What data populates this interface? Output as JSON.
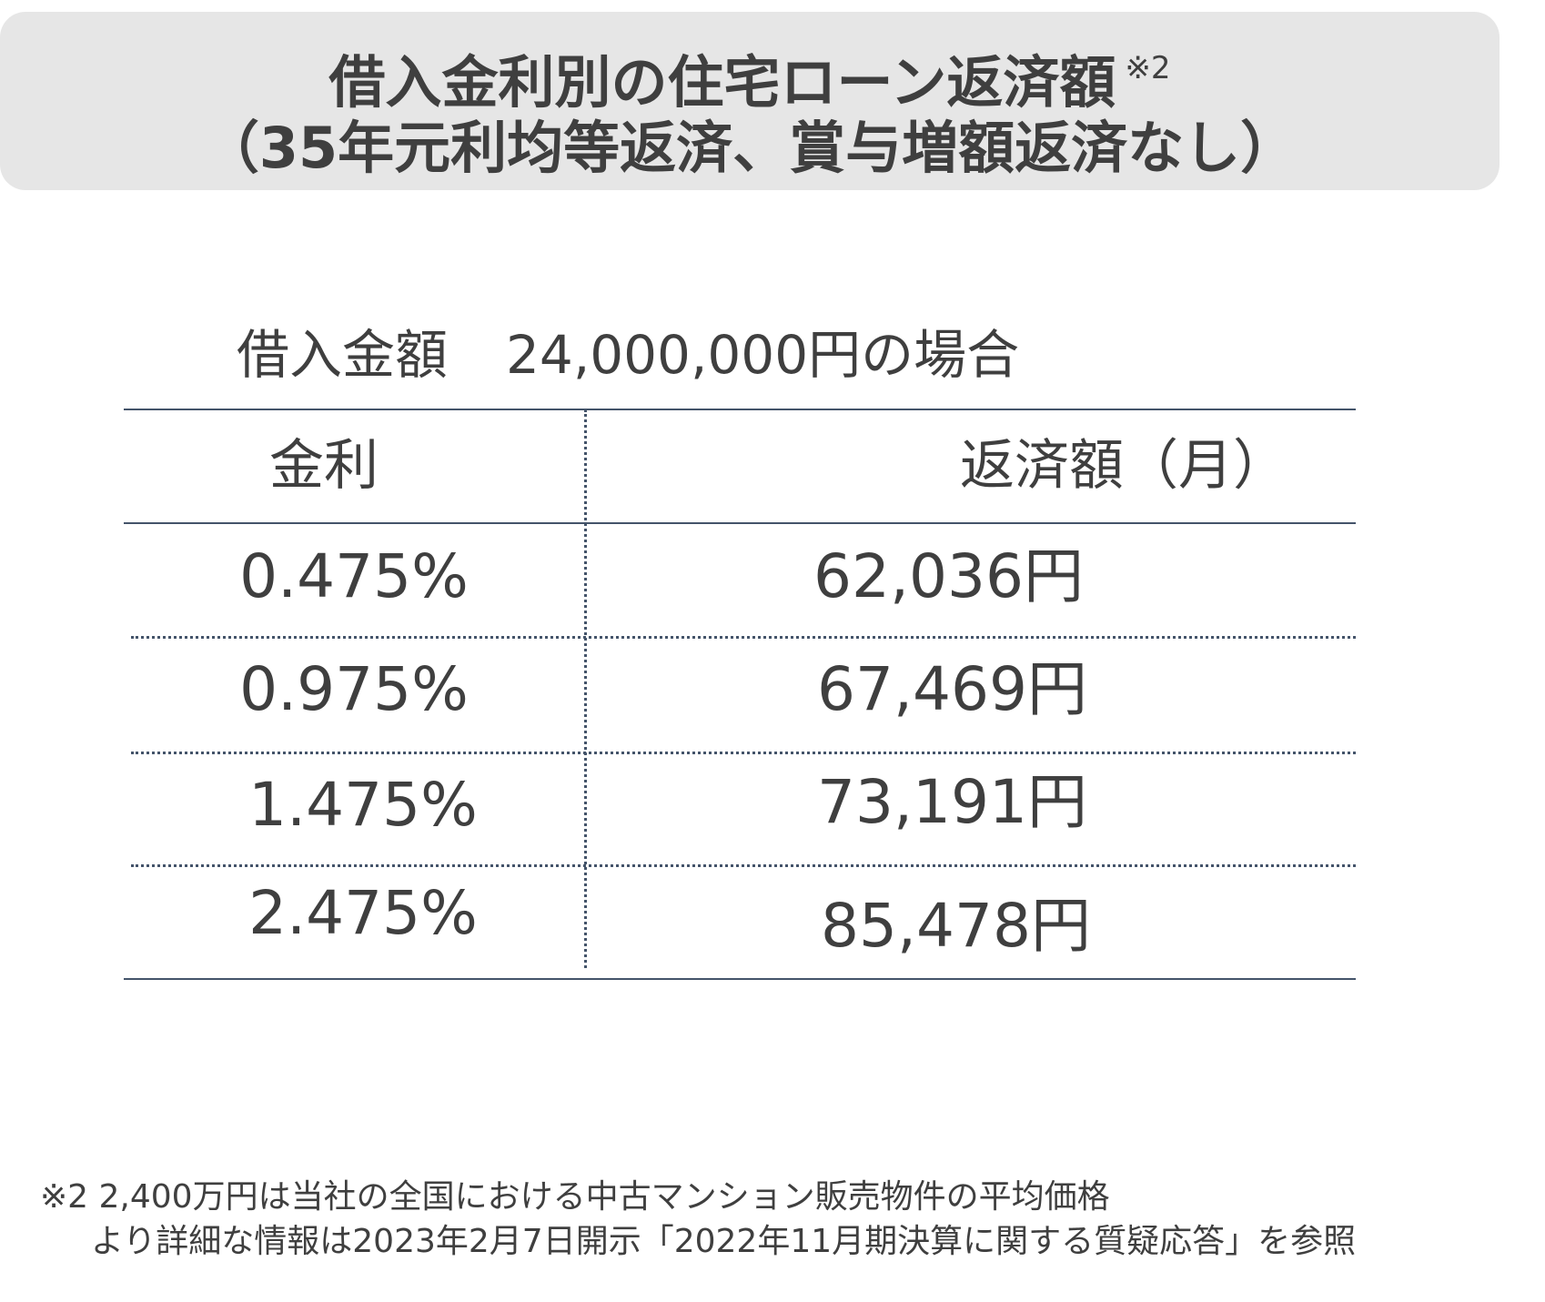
{
  "title": {
    "line1": "借入金利別の住宅ローン返済額",
    "note_mark": "※2",
    "line2": "（35年元利均等返済、賞与増額返済なし）"
  },
  "subtitle": {
    "label": "借入金額",
    "amount": "24,000,000円の場合"
  },
  "table": {
    "headers": {
      "rate": "金利",
      "payment": "返済額（月）"
    },
    "rows": [
      {
        "rate": "0.475%",
        "payment": "62,036円"
      },
      {
        "rate": "0.975%",
        "payment": "67,469円"
      },
      {
        "rate": "1.475%",
        "payment": "73,191円"
      },
      {
        "rate": "2.475%",
        "payment": "85,478円"
      }
    ]
  },
  "footnote": {
    "line1": "※2  2,400万円は当社の全国における中古マンション販売物件の平均価格",
    "line2": "より詳細な情報は2023年2月7日開示「2022年11月期決算に関する質疑応答」を参照"
  },
  "colors": {
    "title_background": "#e6e6e6",
    "text": "#3f3f3f",
    "rule": "#44546a"
  }
}
